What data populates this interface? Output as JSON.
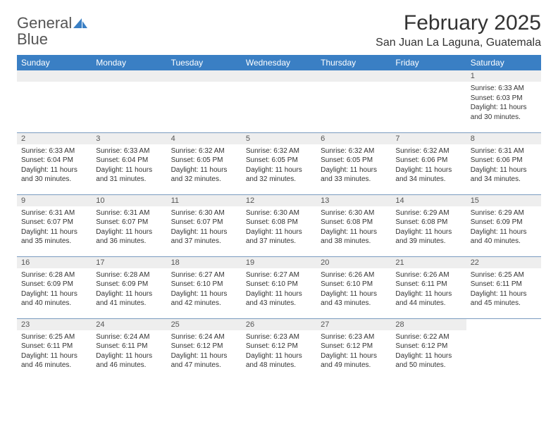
{
  "logo": {
    "text1": "General",
    "text2": "Blue"
  },
  "title": "February 2025",
  "location": "San Juan La Laguna, Guatemala",
  "colors": {
    "header_bg": "#3a7fc4",
    "header_fg": "#ffffff",
    "daynum_bg": "#eeeeee",
    "row_border": "#7a9bbf",
    "text": "#333333"
  },
  "dayHeaders": [
    "Sunday",
    "Monday",
    "Tuesday",
    "Wednesday",
    "Thursday",
    "Friday",
    "Saturday"
  ],
  "weeks": [
    [
      {
        "empty": true
      },
      {
        "empty": true
      },
      {
        "empty": true
      },
      {
        "empty": true
      },
      {
        "empty": true
      },
      {
        "empty": true
      },
      {
        "day": "1",
        "sunrise": "Sunrise: 6:33 AM",
        "sunset": "Sunset: 6:03 PM",
        "daylight": "Daylight: 11 hours and 30 minutes."
      }
    ],
    [
      {
        "day": "2",
        "sunrise": "Sunrise: 6:33 AM",
        "sunset": "Sunset: 6:04 PM",
        "daylight": "Daylight: 11 hours and 30 minutes."
      },
      {
        "day": "3",
        "sunrise": "Sunrise: 6:33 AM",
        "sunset": "Sunset: 6:04 PM",
        "daylight": "Daylight: 11 hours and 31 minutes."
      },
      {
        "day": "4",
        "sunrise": "Sunrise: 6:32 AM",
        "sunset": "Sunset: 6:05 PM",
        "daylight": "Daylight: 11 hours and 32 minutes."
      },
      {
        "day": "5",
        "sunrise": "Sunrise: 6:32 AM",
        "sunset": "Sunset: 6:05 PM",
        "daylight": "Daylight: 11 hours and 32 minutes."
      },
      {
        "day": "6",
        "sunrise": "Sunrise: 6:32 AM",
        "sunset": "Sunset: 6:05 PM",
        "daylight": "Daylight: 11 hours and 33 minutes."
      },
      {
        "day": "7",
        "sunrise": "Sunrise: 6:32 AM",
        "sunset": "Sunset: 6:06 PM",
        "daylight": "Daylight: 11 hours and 34 minutes."
      },
      {
        "day": "8",
        "sunrise": "Sunrise: 6:31 AM",
        "sunset": "Sunset: 6:06 PM",
        "daylight": "Daylight: 11 hours and 34 minutes."
      }
    ],
    [
      {
        "day": "9",
        "sunrise": "Sunrise: 6:31 AM",
        "sunset": "Sunset: 6:07 PM",
        "daylight": "Daylight: 11 hours and 35 minutes."
      },
      {
        "day": "10",
        "sunrise": "Sunrise: 6:31 AM",
        "sunset": "Sunset: 6:07 PM",
        "daylight": "Daylight: 11 hours and 36 minutes."
      },
      {
        "day": "11",
        "sunrise": "Sunrise: 6:30 AM",
        "sunset": "Sunset: 6:07 PM",
        "daylight": "Daylight: 11 hours and 37 minutes."
      },
      {
        "day": "12",
        "sunrise": "Sunrise: 6:30 AM",
        "sunset": "Sunset: 6:08 PM",
        "daylight": "Daylight: 11 hours and 37 minutes."
      },
      {
        "day": "13",
        "sunrise": "Sunrise: 6:30 AM",
        "sunset": "Sunset: 6:08 PM",
        "daylight": "Daylight: 11 hours and 38 minutes."
      },
      {
        "day": "14",
        "sunrise": "Sunrise: 6:29 AM",
        "sunset": "Sunset: 6:08 PM",
        "daylight": "Daylight: 11 hours and 39 minutes."
      },
      {
        "day": "15",
        "sunrise": "Sunrise: 6:29 AM",
        "sunset": "Sunset: 6:09 PM",
        "daylight": "Daylight: 11 hours and 40 minutes."
      }
    ],
    [
      {
        "day": "16",
        "sunrise": "Sunrise: 6:28 AM",
        "sunset": "Sunset: 6:09 PM",
        "daylight": "Daylight: 11 hours and 40 minutes."
      },
      {
        "day": "17",
        "sunrise": "Sunrise: 6:28 AM",
        "sunset": "Sunset: 6:09 PM",
        "daylight": "Daylight: 11 hours and 41 minutes."
      },
      {
        "day": "18",
        "sunrise": "Sunrise: 6:27 AM",
        "sunset": "Sunset: 6:10 PM",
        "daylight": "Daylight: 11 hours and 42 minutes."
      },
      {
        "day": "19",
        "sunrise": "Sunrise: 6:27 AM",
        "sunset": "Sunset: 6:10 PM",
        "daylight": "Daylight: 11 hours and 43 minutes."
      },
      {
        "day": "20",
        "sunrise": "Sunrise: 6:26 AM",
        "sunset": "Sunset: 6:10 PM",
        "daylight": "Daylight: 11 hours and 43 minutes."
      },
      {
        "day": "21",
        "sunrise": "Sunrise: 6:26 AM",
        "sunset": "Sunset: 6:11 PM",
        "daylight": "Daylight: 11 hours and 44 minutes."
      },
      {
        "day": "22",
        "sunrise": "Sunrise: 6:25 AM",
        "sunset": "Sunset: 6:11 PM",
        "daylight": "Daylight: 11 hours and 45 minutes."
      }
    ],
    [
      {
        "day": "23",
        "sunrise": "Sunrise: 6:25 AM",
        "sunset": "Sunset: 6:11 PM",
        "daylight": "Daylight: 11 hours and 46 minutes."
      },
      {
        "day": "24",
        "sunrise": "Sunrise: 6:24 AM",
        "sunset": "Sunset: 6:11 PM",
        "daylight": "Daylight: 11 hours and 46 minutes."
      },
      {
        "day": "25",
        "sunrise": "Sunrise: 6:24 AM",
        "sunset": "Sunset: 6:12 PM",
        "daylight": "Daylight: 11 hours and 47 minutes."
      },
      {
        "day": "26",
        "sunrise": "Sunrise: 6:23 AM",
        "sunset": "Sunset: 6:12 PM",
        "daylight": "Daylight: 11 hours and 48 minutes."
      },
      {
        "day": "27",
        "sunrise": "Sunrise: 6:23 AM",
        "sunset": "Sunset: 6:12 PM",
        "daylight": "Daylight: 11 hours and 49 minutes."
      },
      {
        "day": "28",
        "sunrise": "Sunrise: 6:22 AM",
        "sunset": "Sunset: 6:12 PM",
        "daylight": "Daylight: 11 hours and 50 minutes."
      },
      {
        "empty": true,
        "noBar": true
      }
    ]
  ]
}
